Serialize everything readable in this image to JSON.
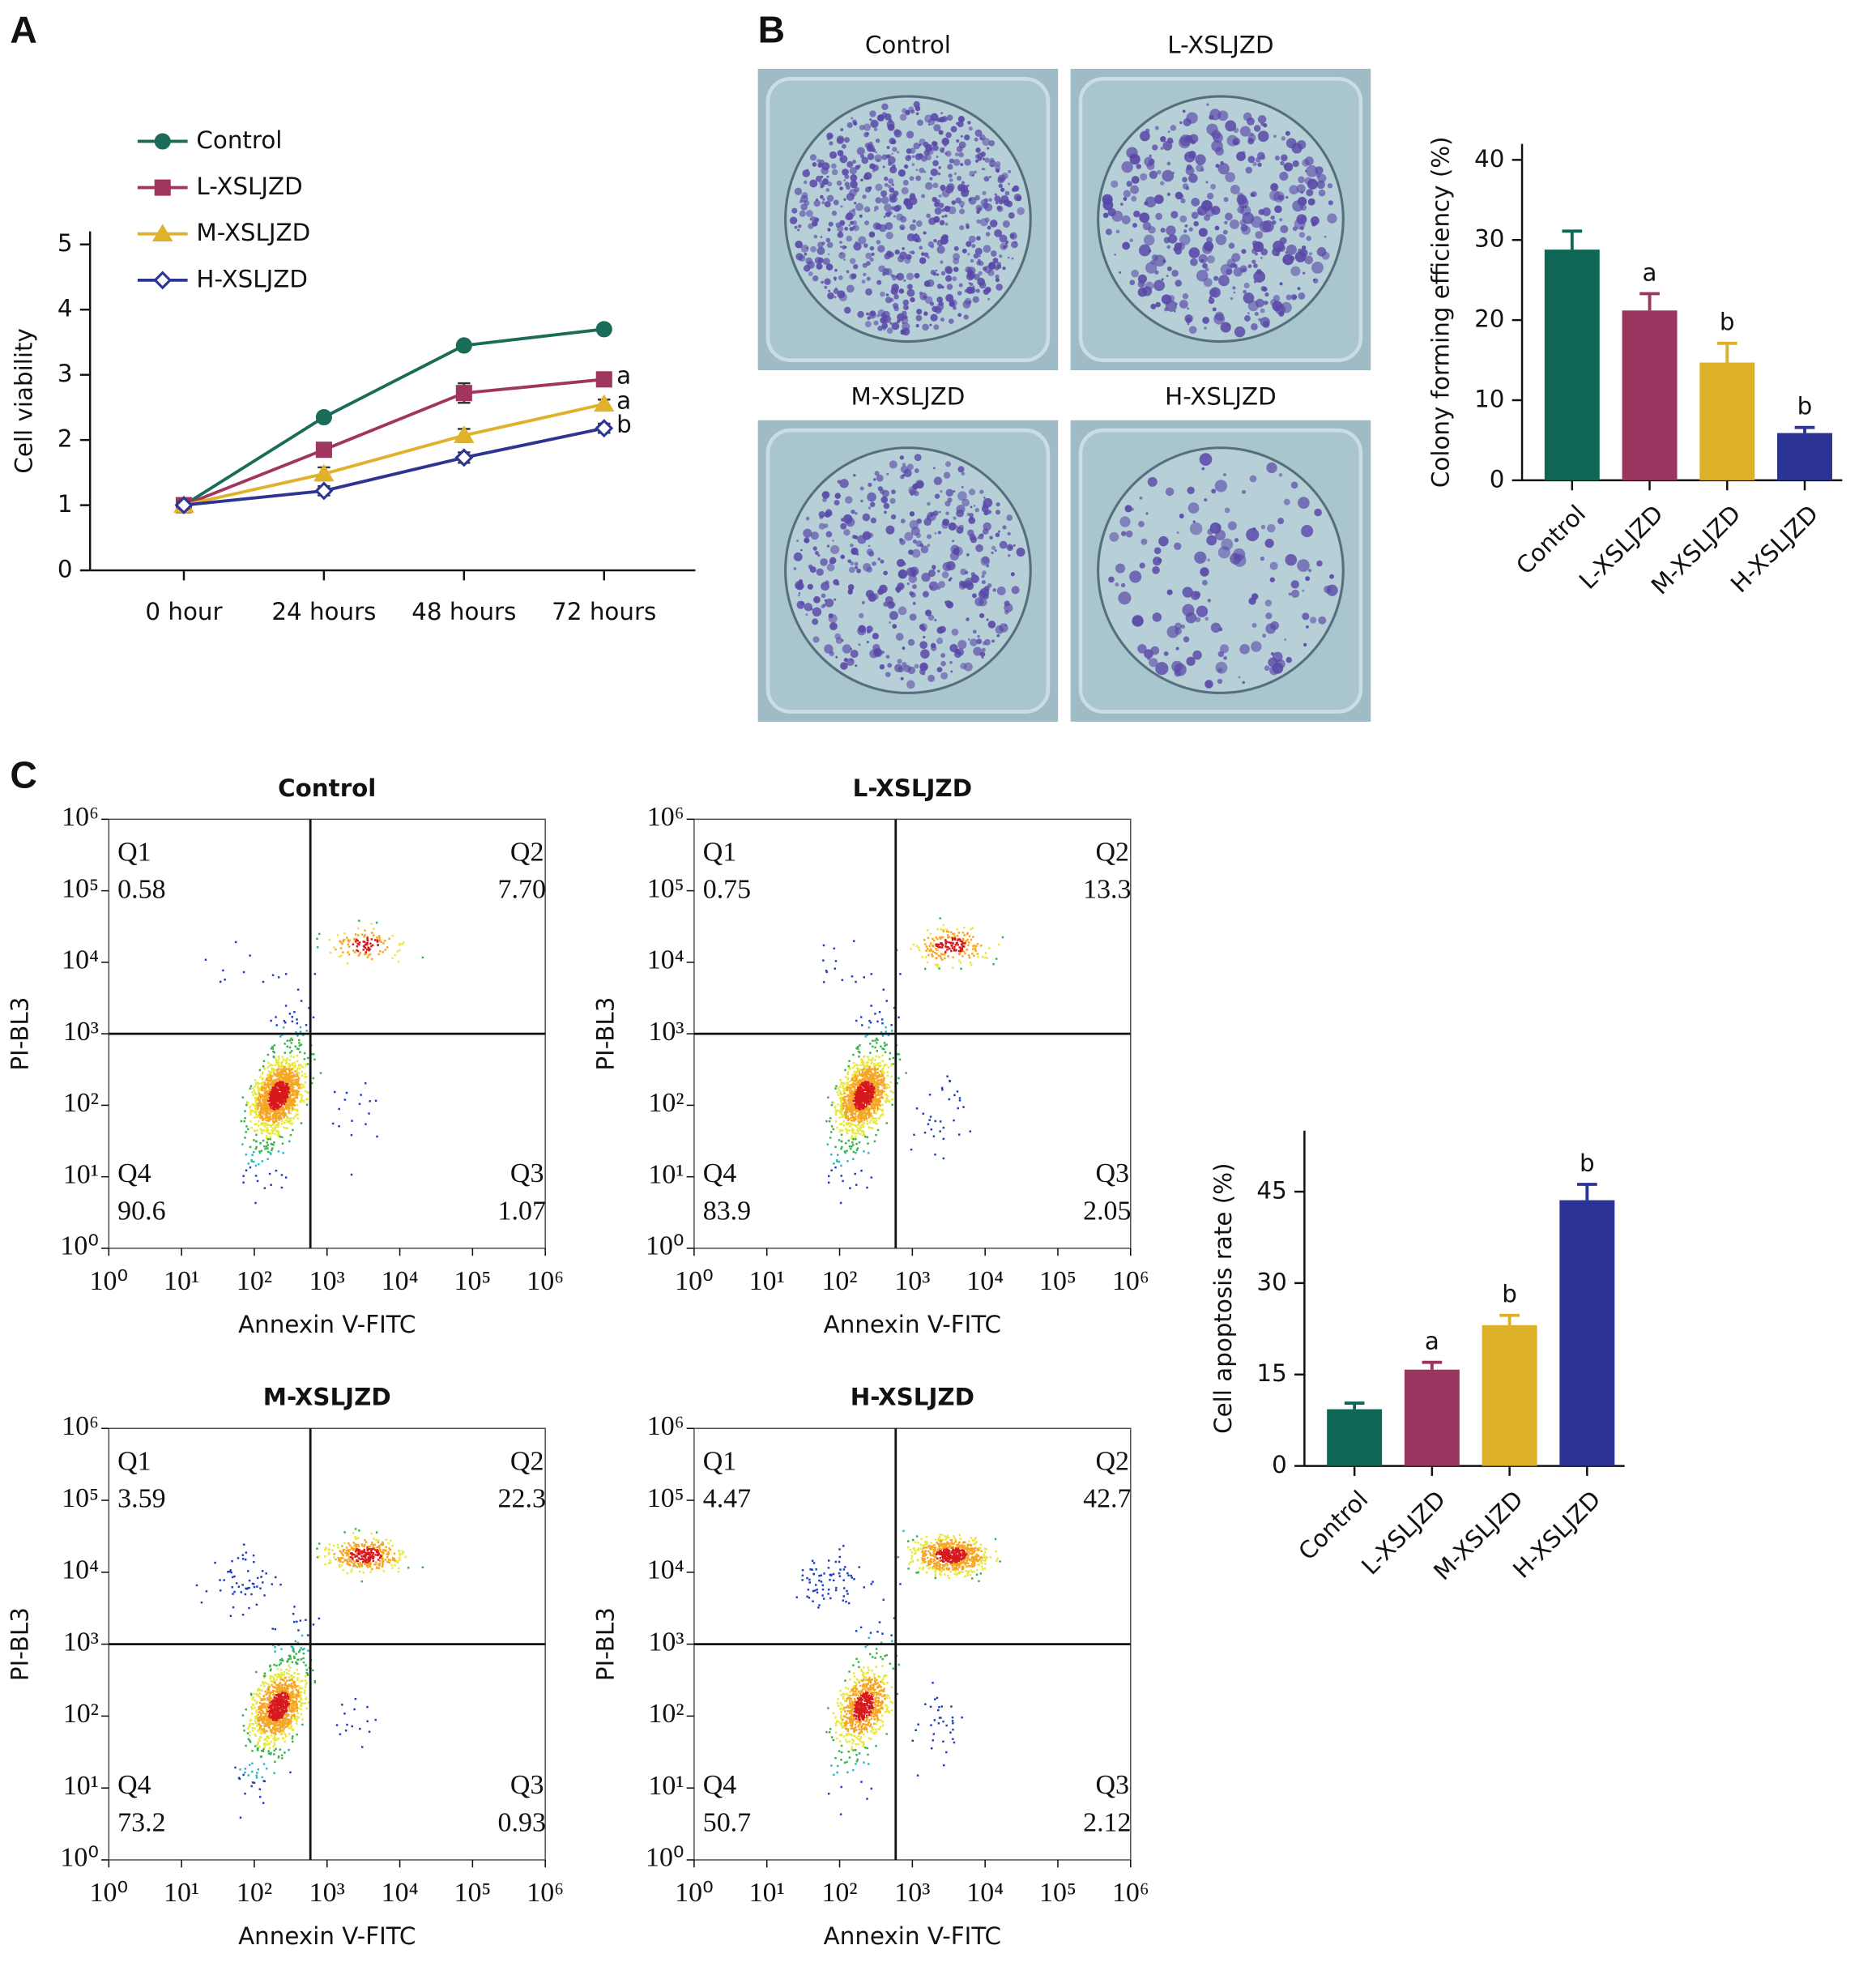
{
  "panel_labels": [
    "A",
    "B",
    "C"
  ],
  "colony_images": {
    "labels": [
      "Control",
      "L-XSLJZD",
      "M-XSLJZD",
      "H-XSLJZD"
    ]
  },
  "chart_data": [
    {
      "type": "line",
      "ylabel": "Cell viability",
      "categories": [
        "0 hour",
        "24 hours",
        "48 hours",
        "72 hours"
      ],
      "ylim": [
        0,
        5.2
      ],
      "yticks": [
        0,
        1,
        2,
        3,
        4,
        5
      ],
      "series": [
        {
          "name": "Control",
          "color": "#1a6b58",
          "marker": "circle",
          "values": [
            1,
            2.35,
            3.45,
            3.7
          ],
          "errors": [
            0.04,
            0.05,
            0.05,
            0.05
          ]
        },
        {
          "name": "L-XSLJZD",
          "color": "#a0365f",
          "marker": "square",
          "values": [
            1,
            1.85,
            2.72,
            2.93
          ],
          "errors": [
            0.04,
            0.1,
            0.15,
            0.1
          ],
          "significance": "a"
        },
        {
          "name": "M-XSLJZD",
          "color": "#e0b12a",
          "marker": "triangle",
          "values": [
            1,
            1.48,
            2.07,
            2.55
          ],
          "errors": [
            0.04,
            0.1,
            0.1,
            0.07
          ],
          "significance": "a"
        },
        {
          "name": "H-XSLJZD",
          "color": "#2c3592",
          "marker": "diamond",
          "values": [
            1,
            1.22,
            1.73,
            2.18
          ],
          "errors": [
            0.05,
            0.07,
            0.08,
            0.07
          ],
          "significance": "b"
        }
      ]
    },
    {
      "type": "bar",
      "ylabel": "Colony forming efficiency (%)",
      "categories": [
        "Control",
        "L-XSLJZD",
        "M-XSLJZD",
        "H-XSLJZD"
      ],
      "values": [
        28.8,
        21.2,
        14.7,
        5.9
      ],
      "errors": [
        2.3,
        2.1,
        2.4,
        0.7
      ],
      "significance": [
        null,
        "a",
        "b",
        "b"
      ],
      "colors": [
        "#0f6655",
        "#9b3560",
        "#dcb128",
        "#2b3494"
      ],
      "ylim": [
        0,
        42
      ],
      "yticks": [
        0,
        10,
        20,
        30,
        40
      ]
    },
    {
      "type": "flow",
      "title": "Control",
      "xlabel": "Annexin V-FITC",
      "ylabel": "PI-BL3",
      "xscale": "log",
      "yscale": "log",
      "xlim": [
        1,
        1000000
      ],
      "ylim": [
        1,
        1000000
      ],
      "xticks": [
        {
          "value": 1,
          "label": "10⁰"
        },
        {
          "value": 10,
          "label": "10¹"
        },
        {
          "value": 100,
          "label": "10²"
        },
        {
          "value": 1000,
          "label": "10³"
        },
        {
          "value": 10000,
          "label": "10⁴"
        },
        {
          "value": 100000,
          "label": "10⁵"
        },
        {
          "value": 1000000,
          "label": "10⁶"
        }
      ],
      "yticks": [
        {
          "value": 1,
          "label": "10⁰"
        },
        {
          "value": 10,
          "label": "10¹"
        },
        {
          "value": 100,
          "label": "10²"
        },
        {
          "value": 1000,
          "label": "10³"
        },
        {
          "value": 10000,
          "label": "10⁴"
        },
        {
          "value": 100000,
          "label": "10⁵"
        },
        {
          "value": 1000000,
          "label": "10⁶"
        }
      ],
      "gate": {
        "x": 590,
        "y": 1000
      },
      "quadrants": [
        "Q1",
        "Q2",
        "Q3",
        "Q4"
      ],
      "values": [
        0.58,
        7.7,
        1.07,
        90.6
      ],
      "value_labels": [
        "0.58",
        "7.70",
        "1.07",
        "90.6"
      ]
    },
    {
      "type": "flow",
      "title": "L-XSLJZD",
      "xlabel": "Annexin V-FITC",
      "ylabel": "PI-BL3",
      "xscale": "log",
      "yscale": "log",
      "xlim": [
        1,
        1000000
      ],
      "ylim": [
        1,
        1000000
      ],
      "xticks": [
        {
          "value": 1,
          "label": "10⁰"
        },
        {
          "value": 10,
          "label": "10¹"
        },
        {
          "value": 100,
          "label": "10²"
        },
        {
          "value": 1000,
          "label": "10³"
        },
        {
          "value": 10000,
          "label": "10⁴"
        },
        {
          "value": 100000,
          "label": "10⁵"
        },
        {
          "value": 1000000,
          "label": "10⁶"
        }
      ],
      "yticks": [
        {
          "value": 1,
          "label": "10⁰"
        },
        {
          "value": 10,
          "label": "10¹"
        },
        {
          "value": 100,
          "label": "10²"
        },
        {
          "value": 1000,
          "label": "10³"
        },
        {
          "value": 10000,
          "label": "10⁴"
        },
        {
          "value": 100000,
          "label": "10⁵"
        },
        {
          "value": 1000000,
          "label": "10⁶"
        }
      ],
      "gate": {
        "x": 590,
        "y": 1000
      },
      "quadrants": [
        "Q1",
        "Q2",
        "Q3",
        "Q4"
      ],
      "values": [
        0.75,
        13.3,
        2.05,
        83.9
      ],
      "value_labels": [
        "0.75",
        "13.3",
        "2.05",
        "83.9"
      ]
    },
    {
      "type": "flow",
      "title": "M-XSLJZD",
      "xlabel": "Annexin V-FITC",
      "ylabel": "PI-BL3",
      "xscale": "log",
      "yscale": "log",
      "xlim": [
        1,
        1000000
      ],
      "ylim": [
        1,
        1000000
      ],
      "xticks": [
        {
          "value": 1,
          "label": "10⁰"
        },
        {
          "value": 10,
          "label": "10¹"
        },
        {
          "value": 100,
          "label": "10²"
        },
        {
          "value": 1000,
          "label": "10³"
        },
        {
          "value": 10000,
          "label": "10⁴"
        },
        {
          "value": 100000,
          "label": "10⁵"
        },
        {
          "value": 1000000,
          "label": "10⁶"
        }
      ],
      "yticks": [
        {
          "value": 1,
          "label": "10⁰"
        },
        {
          "value": 10,
          "label": "10¹"
        },
        {
          "value": 100,
          "label": "10²"
        },
        {
          "value": 1000,
          "label": "10³"
        },
        {
          "value": 10000,
          "label": "10⁴"
        },
        {
          "value": 100000,
          "label": "10⁵"
        },
        {
          "value": 1000000,
          "label": "10⁶"
        }
      ],
      "gate": {
        "x": 590,
        "y": 1000
      },
      "quadrants": [
        "Q1",
        "Q2",
        "Q3",
        "Q4"
      ],
      "values": [
        3.59,
        22.3,
        0.93,
        73.2
      ],
      "value_labels": [
        "3.59",
        "22.3",
        "0.93",
        "73.2"
      ]
    },
    {
      "type": "flow",
      "title": "H-XSLJZD",
      "xlabel": "Annexin V-FITC",
      "ylabel": "PI-BL3",
      "xscale": "log",
      "yscale": "log",
      "xlim": [
        1,
        1000000
      ],
      "ylim": [
        1,
        1000000
      ],
      "xticks": [
        {
          "value": 1,
          "label": "10⁰"
        },
        {
          "value": 10,
          "label": "10¹"
        },
        {
          "value": 100,
          "label": "10²"
        },
        {
          "value": 1000,
          "label": "10³"
        },
        {
          "value": 10000,
          "label": "10⁴"
        },
        {
          "value": 100000,
          "label": "10⁵"
        },
        {
          "value": 1000000,
          "label": "10⁶"
        }
      ],
      "yticks": [
        {
          "value": 1,
          "label": "10⁰"
        },
        {
          "value": 10,
          "label": "10¹"
        },
        {
          "value": 100,
          "label": "10²"
        },
        {
          "value": 1000,
          "label": "10³"
        },
        {
          "value": 10000,
          "label": "10⁴"
        },
        {
          "value": 100000,
          "label": "10⁵"
        },
        {
          "value": 1000000,
          "label": "10⁶"
        }
      ],
      "gate": {
        "x": 590,
        "y": 1000
      },
      "quadrants": [
        "Q1",
        "Q2",
        "Q3",
        "Q4"
      ],
      "values": [
        4.47,
        42.7,
        2.12,
        50.7
      ],
      "value_labels": [
        "4.47",
        "42.7",
        "2.12",
        "50.7"
      ]
    },
    {
      "type": "bar",
      "ylabel": "Cell apoptosis rate (%)",
      "categories": [
        "Control",
        "L-XSLJZD",
        "M-XSLJZD",
        "H-XSLJZD"
      ],
      "values": [
        9.3,
        15.8,
        23.1,
        43.6
      ],
      "errors": [
        1.0,
        1.2,
        1.6,
        2.6
      ],
      "significance": [
        null,
        "a",
        "b",
        "b"
      ],
      "colors": [
        "#0f6655",
        "#9b3560",
        "#dcb128",
        "#2b3494"
      ],
      "ylim": [
        0,
        55
      ],
      "yticks": [
        0,
        15,
        30,
        45
      ]
    }
  ]
}
